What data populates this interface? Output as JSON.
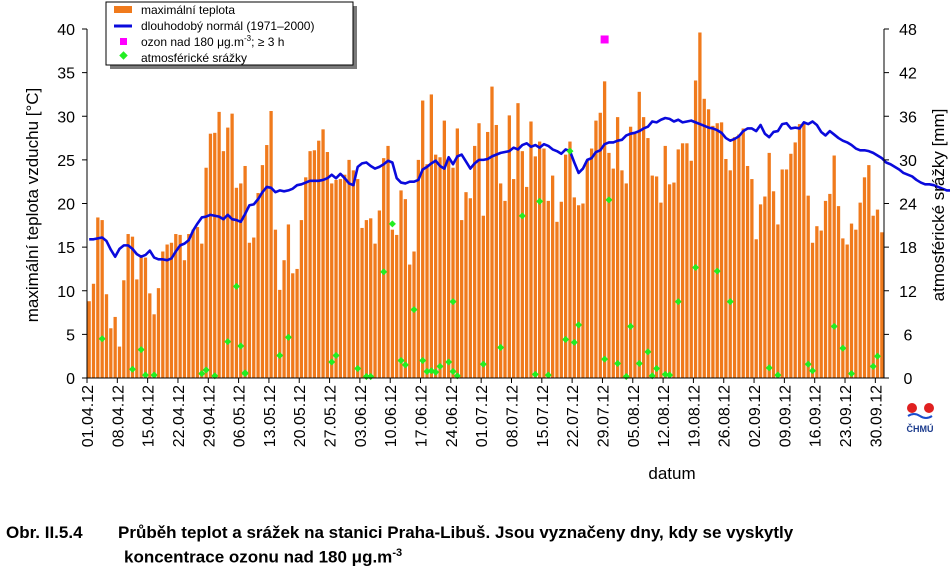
{
  "chart_data": {
    "type": "bar",
    "xlabel": "datum",
    "ylabel": "maximální teplota vzduchu [°C]",
    "y2label": "atmosférické srážky [mm]",
    "ylim": [
      0,
      40
    ],
    "y2lim": [
      0,
      48
    ],
    "yticks": [
      "0",
      "5",
      "10",
      "15",
      "20",
      "25",
      "30",
      "35",
      "40"
    ],
    "y2ticks": [
      "0",
      "6",
      "12",
      "18",
      "24",
      "30",
      "36",
      "42",
      "48"
    ],
    "xtick_labels": [
      "01.04.12",
      "08.04.12",
      "15.04.12",
      "22.04.12",
      "29.04.12",
      "06.05.12",
      "13.05.12",
      "20.05.12",
      "27.05.12",
      "03.06.12",
      "10.06.12",
      "17.06.12",
      "24.06.12",
      "01.07.12",
      "08.07.12",
      "15.07.12",
      "22.07.12",
      "29.07.12",
      "05.08.12",
      "12.08.12",
      "19.08.12",
      "26.08.12",
      "02.09.12",
      "09.09.12",
      "16.09.12",
      "23.09.12",
      "30.09.12"
    ],
    "legend_position": "top-left",
    "grid": false,
    "legend": {
      "max_temp": "maximální teplota",
      "normal": "dlouhodobý normál (1971–2000)",
      "ozone_prefix": "ozon nad 180 μg.m",
      "ozone_sup": "-3",
      "ozone_suffix": "; ≥ 3 h",
      "precip": "atmosférické srážky"
    },
    "colors": {
      "bars": "#f07a1c",
      "normal": "#0a0adc",
      "ozone": "#ff00ff",
      "precip": "#22ee22"
    },
    "series": [
      {
        "name": "maximální teplota",
        "values": [
          8.8,
          10.8,
          18.4,
          18.1,
          9.6,
          5.7,
          7.0,
          3.6,
          11.2,
          16.5,
          16.2,
          11.3,
          14.1,
          13.8,
          9.7,
          7.3,
          10.3,
          14.5,
          15.3,
          15.5,
          16.5,
          16.4,
          13.5,
          16.5,
          17.0,
          17.3,
          15.4,
          24.1,
          28.0,
          28.1,
          30.5,
          26.0,
          28.7,
          30.3,
          21.8,
          22.3,
          24.3,
          15.5,
          16.1,
          21.2,
          24.4,
          26.7,
          30.6,
          17.0,
          10.1,
          13.5,
          17.6,
          12.0,
          12.5,
          18.1,
          23.0,
          26.0,
          26.1,
          27.2,
          28.5,
          25.9,
          22.3,
          22.7,
          22.8,
          23.3,
          25.0,
          23.8,
          22.8,
          17.2,
          18.1,
          18.3,
          15.4,
          19.2,
          25.2,
          26.6,
          17.0,
          16.4,
          21.5,
          20.5,
          13.0,
          14.5,
          25.0,
          31.8,
          24.5,
          32.5,
          25.6,
          25.3,
          29.5,
          24.9,
          24.1,
          28.6,
          18.1,
          21.3,
          20.6,
          26.6,
          29.2,
          18.6,
          28.2,
          33.4,
          29.0,
          22.3,
          20.3,
          30.1,
          22.8,
          31.5,
          26.0,
          21.9,
          29.4,
          25.4,
          27.1,
          26.3,
          20.3,
          23.2,
          17.9,
          20.2,
          25.6,
          27.1,
          20.7,
          19.8,
          20.0,
          24.9,
          26.3,
          29.5,
          30.4,
          34.0,
          25.8,
          24.0,
          29.9,
          23.8,
          22.3,
          28.8,
          28.0,
          32.8,
          29.9,
          27.5,
          23.2,
          23.1,
          20.1,
          26.6,
          22.2,
          22.4,
          26.2,
          26.9,
          26.9,
          24.9,
          34.1,
          39.6,
          32.0,
          30.8,
          28.9,
          29.2,
          29.3,
          25.1,
          23.8,
          27.6,
          27.9,
          28.6,
          24.3,
          22.8,
          15.9,
          19.9,
          20.8,
          25.8,
          21.4,
          17.6,
          23.9,
          23.9,
          25.7,
          27.0,
          29.1,
          29.3,
          20.9,
          15.5,
          17.4,
          16.9,
          20.3,
          21.1,
          25.5,
          19.7,
          16.0,
          15.3,
          17.7,
          17.0,
          20.1,
          23.0,
          24.4,
          18.6,
          19.3,
          16.7
        ]
      },
      {
        "name": "dlouhodobý normál (1971–2000)",
        "values": [
          15.9,
          15.9,
          16.0,
          16.1,
          15.7,
          14.7,
          13.9,
          14.8,
          15.2,
          15.2,
          14.8,
          14.2,
          13.9,
          14.1,
          14.6,
          13.8,
          13.6,
          13.6,
          13.5,
          13.7,
          14.5,
          15.2,
          15.4,
          15.8,
          16.9,
          17.7,
          18.4,
          18.5,
          18.7,
          18.6,
          18.5,
          18.2,
          18.7,
          18.2,
          18.1,
          17.9,
          18.8,
          19.8,
          19.9,
          20.5,
          21.3,
          21.9,
          21.8,
          21.3,
          21.5,
          21.4,
          21.5,
          21.7,
          22.1,
          22.2,
          22.4,
          22.6,
          22.6,
          22.6,
          22.7,
          22.9,
          23.3,
          22.9,
          23.4,
          22.9,
          22.3,
          22.1,
          24.2,
          24.6,
          24.7,
          24.3,
          24.0,
          24.2,
          24.5,
          24.9,
          24.7,
          22.9,
          22.4,
          22.3,
          22.5,
          22.5,
          22.7,
          23.9,
          24.2,
          24.6,
          24.9,
          24.3,
          24.0,
          25.3,
          24.5,
          25.4,
          25.6,
          24.8,
          24.0,
          24.6,
          25.0,
          25.0,
          25.1,
          25.4,
          25.6,
          25.8,
          25.9,
          26.0,
          26.4,
          26.2,
          26.7,
          26.9,
          26.5,
          26.7,
          26.4,
          26.8,
          26.6,
          26.2,
          26.0,
          25.7,
          26.2,
          26.0,
          24.7,
          23.5,
          24.0,
          25.0,
          25.2,
          25.9,
          26.1,
          26.8,
          27.0,
          27.0,
          27.2,
          27.3,
          27.8,
          28.0,
          28.1,
          28.3,
          28.6,
          28.8,
          29.4,
          29.3,
          29.6,
          29.8,
          29.7,
          29.4,
          29.6,
          29.3,
          29.4,
          29.5,
          29.3,
          29.1,
          28.9,
          28.7,
          28.6,
          28.4,
          28.1,
          27.5,
          27.2,
          27.4,
          27.7,
          28.3,
          28.6,
          28.6,
          28.3,
          29.0,
          28.0,
          27.6,
          28.2,
          28.3,
          29.1,
          29.2,
          28.6,
          28.7,
          28.6,
          29.3,
          29.1,
          29.4,
          29.0,
          28.2,
          27.8,
          28.3,
          27.9,
          27.5,
          27.2,
          27.0,
          26.7,
          26.3,
          26.1,
          26.1,
          26.0,
          25.8,
          25.5,
          25.2,
          24.7,
          24.5,
          24.2,
          23.9,
          23.5,
          23.3,
          23.1,
          22.7,
          22.4,
          22.2,
          22.2,
          22.1,
          21.9,
          21.7,
          21.5,
          21.5
        ]
      },
      {
        "name": "ozon nad 180 μg.m-3; ≥ 3 h",
        "points": [
          {
            "x": "29.07.12",
            "y": 38.8
          }
        ]
      },
      {
        "name": "atmosférické srážky",
        "points": [
          {
            "x": "04.04.12",
            "y": 5.4
          },
          {
            "x": "11.04.12",
            "y": 1.2
          },
          {
            "x": "13.04.12",
            "y": 3.9
          },
          {
            "x": "14.04.12",
            "y": 0.4
          },
          {
            "x": "16.04.12",
            "y": 0.4
          },
          {
            "x": "27.04.12",
            "y": 0.6
          },
          {
            "x": "28.04.12",
            "y": 1.1
          },
          {
            "x": "30.04.12",
            "y": 0.3
          },
          {
            "x": "03.05.12",
            "y": 5.0
          },
          {
            "x": "05.05.12",
            "y": 12.6
          },
          {
            "x": "06.05.12",
            "y": 4.4
          },
          {
            "x": "07.05.12",
            "y": 0.7
          },
          {
            "x": "15.05.12",
            "y": 3.1
          },
          {
            "x": "17.05.12",
            "y": 5.6
          },
          {
            "x": "27.05.12",
            "y": 2.2
          },
          {
            "x": "28.05.12",
            "y": 3.1
          },
          {
            "x": "02.06.12",
            "y": 1.3
          },
          {
            "x": "04.06.12",
            "y": 0.2
          },
          {
            "x": "05.06.12",
            "y": 0.2
          },
          {
            "x": "08.06.12",
            "y": 14.6
          },
          {
            "x": "10.06.12",
            "y": 21.2
          },
          {
            "x": "12.06.12",
            "y": 2.4
          },
          {
            "x": "13.06.12",
            "y": 1.8
          },
          {
            "x": "15.06.12",
            "y": 9.4
          },
          {
            "x": "17.06.12",
            "y": 2.4
          },
          {
            "x": "18.06.12",
            "y": 0.9
          },
          {
            "x": "19.06.12",
            "y": 1.0
          },
          {
            "x": "20.06.12",
            "y": 0.8
          },
          {
            "x": "21.06.12",
            "y": 1.6
          },
          {
            "x": "23.06.12",
            "y": 2.2
          },
          {
            "x": "24.06.12",
            "y": 0.9
          },
          {
            "x": "25.06.12",
            "y": 0.3
          },
          {
            "x": "24.06.12",
            "y": 10.5
          },
          {
            "x": "05.07.12",
            "y": 4.2
          },
          {
            "x": "10.07.12",
            "y": 22.3
          },
          {
            "x": "13.07.12",
            "y": 0.5
          },
          {
            "x": "14.07.12",
            "y": 24.3
          },
          {
            "x": "20.07.12",
            "y": 5.3
          },
          {
            "x": "22.07.12",
            "y": 4.9
          },
          {
            "x": "23.07.12",
            "y": 7.3
          },
          {
            "x": "29.07.12",
            "y": 2.6
          },
          {
            "x": "01.08.12",
            "y": 2.0
          },
          {
            "x": "03.08.12",
            "y": 0.2
          },
          {
            "x": "04.08.12",
            "y": 7.1
          },
          {
            "x": "06.08.12",
            "y": 2.0
          },
          {
            "x": "08.08.12",
            "y": 3.6
          },
          {
            "x": "09.08.12",
            "y": 0.3
          },
          {
            "x": "12.08.12",
            "y": 0.5
          },
          {
            "x": "13.08.12",
            "y": 0.4
          },
          {
            "x": "15.08.12",
            "y": 10.5
          },
          {
            "x": "19.08.12",
            "y": 15.2
          },
          {
            "x": "24.08.12",
            "y": 14.7
          },
          {
            "x": "27.08.12",
            "y": 10.5
          },
          {
            "x": "05.09.12",
            "y": 1.4
          },
          {
            "x": "07.09.12",
            "y": 0.4
          },
          {
            "x": "14.09.12",
            "y": 1.9
          },
          {
            "x": "15.09.12",
            "y": 1.0
          },
          {
            "x": "20.09.12",
            "y": 7.1
          },
          {
            "x": "22.09.12",
            "y": 4.1
          },
          {
            "x": "24.09.12",
            "y": 0.6
          },
          {
            "x": "29.09.12",
            "y": 1.6
          },
          {
            "x": "30.09.12",
            "y": 3.0
          },
          {
            "x": "07.05.12",
            "y": 0.6
          },
          {
            "x": "01.07.12",
            "y": 1.9
          },
          {
            "x": "16.07.12",
            "y": 0.4
          },
          {
            "x": "21.07.12",
            "y": 31.2
          },
          {
            "x": "30.07.12",
            "y": 24.5
          },
          {
            "x": "10.08.12",
            "y": 1.3
          }
        ]
      }
    ]
  },
  "logo_text": "ČHMÚ",
  "caption": {
    "number": "Obr. II.5.4",
    "line1": "Průběh teplot a srážek na stanici Praha-Libuš. Jsou vyznačeny dny, kdy se vyskytly",
    "line2": "koncentrace ozonu nad 180 μg.m",
    "line2_sup": "-3"
  }
}
